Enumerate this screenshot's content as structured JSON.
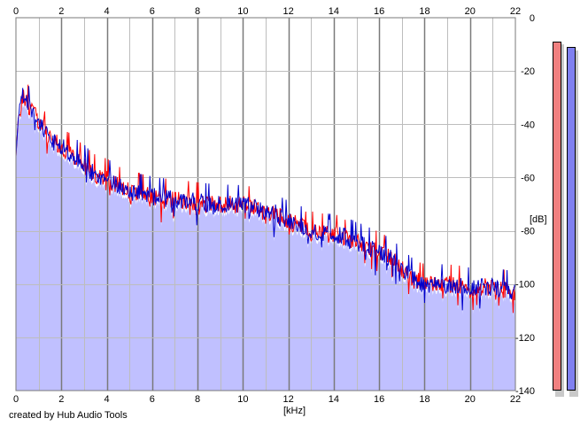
{
  "chart_data": {
    "type": "area",
    "title": "",
    "xlabel": "[kHz]",
    "ylabel": "[dB]",
    "xlim": [
      0,
      22
    ],
    "ylim": [
      -140,
      0
    ],
    "x_ticks": [
      "0",
      "2",
      "4",
      "6",
      "8",
      "10",
      "12",
      "14",
      "16",
      "18",
      "20",
      "22"
    ],
    "y_ticks": [
      "0",
      "-20",
      "-40",
      "-60",
      "-80",
      "-100",
      "-120",
      "-140"
    ],
    "grid": true,
    "series": [
      {
        "color": "#ff0000",
        "envelope": [
          [
            0,
            -52
          ],
          [
            0.1,
            -38
          ],
          [
            0.3,
            -29
          ],
          [
            0.5,
            -32
          ],
          [
            0.8,
            -36
          ],
          [
            1.2,
            -42
          ],
          [
            1.6,
            -46
          ],
          [
            2.0,
            -48
          ],
          [
            2.5,
            -52
          ],
          [
            3.0,
            -55
          ],
          [
            3.5,
            -59
          ],
          [
            4.0,
            -60
          ],
          [
            4.5,
            -63
          ],
          [
            5.0,
            -65
          ],
          [
            5.5,
            -66
          ],
          [
            6.0,
            -67
          ],
          [
            7.0,
            -68
          ],
          [
            8.0,
            -69
          ],
          [
            9.0,
            -70
          ],
          [
            10.0,
            -70
          ],
          [
            10.5,
            -71
          ],
          [
            11.0,
            -73
          ],
          [
            11.5,
            -74
          ],
          [
            12.0,
            -76
          ],
          [
            12.5,
            -78
          ],
          [
            13.0,
            -80
          ],
          [
            13.5,
            -81
          ],
          [
            14.0,
            -81
          ],
          [
            14.5,
            -82
          ],
          [
            15.0,
            -84
          ],
          [
            15.5,
            -86
          ],
          [
            16.0,
            -88
          ],
          [
            16.5,
            -90
          ],
          [
            17.0,
            -94
          ],
          [
            17.5,
            -98
          ],
          [
            18.0,
            -100
          ],
          [
            19.0,
            -100
          ],
          [
            20.0,
            -101
          ],
          [
            21.0,
            -101
          ],
          [
            21.5,
            -102
          ],
          [
            22.0,
            -103
          ]
        ]
      },
      {
        "color": "#0000cc",
        "envelope": [
          [
            0,
            -52
          ],
          [
            0.1,
            -38
          ],
          [
            0.3,
            -28
          ],
          [
            0.5,
            -32
          ],
          [
            0.8,
            -36
          ],
          [
            1.2,
            -42
          ],
          [
            1.6,
            -46
          ],
          [
            2.0,
            -48
          ],
          [
            2.5,
            -52
          ],
          [
            3.0,
            -55
          ],
          [
            3.5,
            -59
          ],
          [
            4.0,
            -60
          ],
          [
            4.5,
            -63
          ],
          [
            5.0,
            -65
          ],
          [
            5.5,
            -66
          ],
          [
            6.0,
            -67
          ],
          [
            7.0,
            -68
          ],
          [
            8.0,
            -69
          ],
          [
            9.0,
            -70
          ],
          [
            10.0,
            -70
          ],
          [
            10.5,
            -71
          ],
          [
            11.0,
            -73
          ],
          [
            11.5,
            -74
          ],
          [
            12.0,
            -76
          ],
          [
            12.5,
            -78
          ],
          [
            13.0,
            -80
          ],
          [
            13.5,
            -81
          ],
          [
            14.0,
            -81
          ],
          [
            14.5,
            -82
          ],
          [
            15.0,
            -84
          ],
          [
            15.5,
            -86
          ],
          [
            16.0,
            -88
          ],
          [
            16.5,
            -90
          ],
          [
            17.0,
            -94
          ],
          [
            17.5,
            -98
          ],
          [
            18.0,
            -100
          ],
          [
            19.0,
            -100
          ],
          [
            20.0,
            -101
          ],
          [
            21.0,
            -101
          ],
          [
            21.5,
            -102
          ],
          [
            22.0,
            -103
          ]
        ]
      }
    ]
  },
  "meters": {
    "range_db": [
      -140,
      0
    ],
    "bars": [
      {
        "channel": "left",
        "color": "#f08080",
        "level_db": -9
      },
      {
        "channel": "right",
        "color": "#8080f0",
        "level_db": -11
      }
    ]
  },
  "colors": {
    "fill": "#c0c0ff",
    "grid_minor": "#bdbdbd",
    "grid_major": "#7a7a7a"
  },
  "footer": {
    "credit": "created by Hub Audio Tools"
  }
}
